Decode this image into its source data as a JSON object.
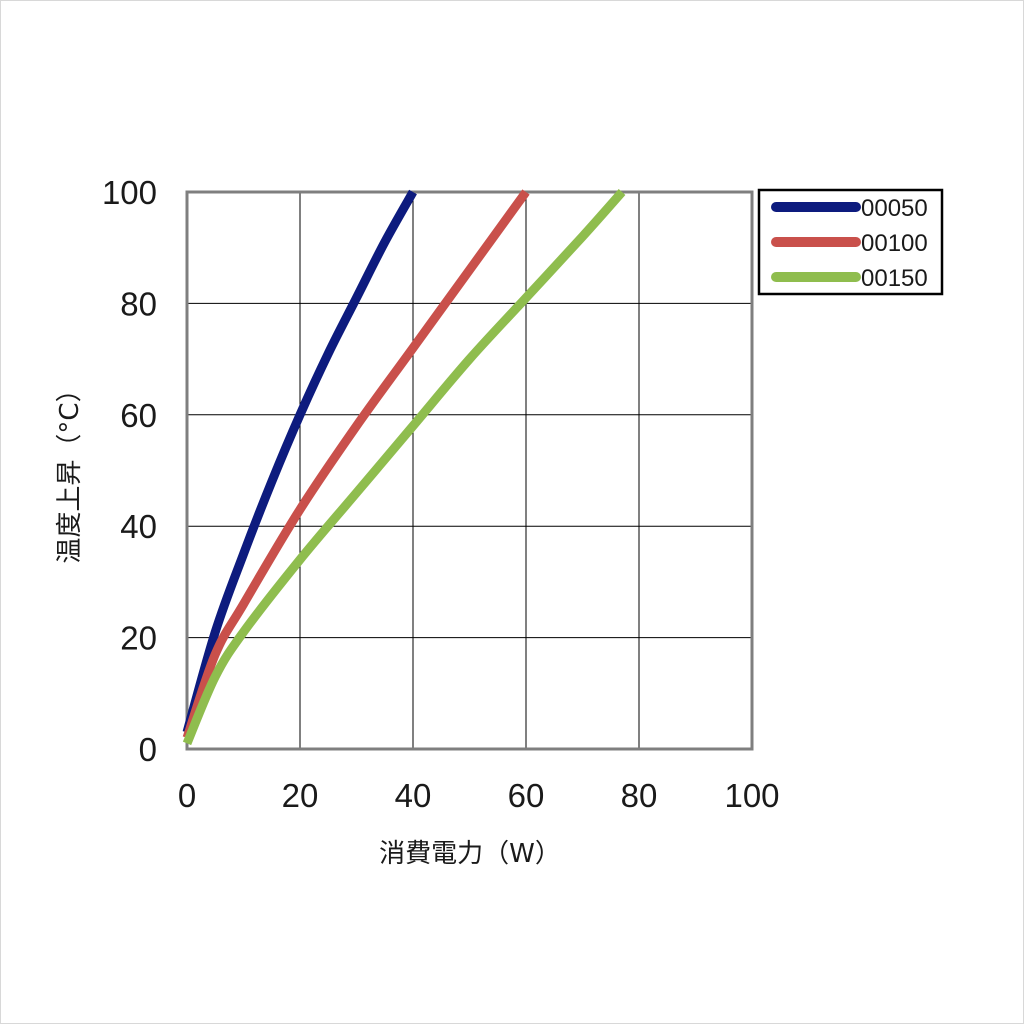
{
  "chart_data": {
    "type": "line",
    "xlabel": "消費電力（W）",
    "ylabel": "温度上昇（°C）",
    "xlim": [
      0,
      100
    ],
    "ylim": [
      0,
      100
    ],
    "xticks": [
      "0",
      "20",
      "40",
      "60",
      "80",
      "100"
    ],
    "yticks": [
      "0",
      "20",
      "40",
      "60",
      "80",
      "100"
    ],
    "grid": true,
    "legend_position": "top-right outside",
    "series": [
      {
        "name": "00050",
        "color": "#0d1b7e",
        "x": [
          0,
          5,
          10,
          15,
          20,
          25,
          30,
          35,
          40
        ],
        "y": [
          3,
          21,
          35,
          48,
          60,
          71,
          81,
          91,
          100
        ]
      },
      {
        "name": "00100",
        "color": "#c9504b",
        "x": [
          0,
          5,
          10,
          20,
          30,
          40,
          50,
          60
        ],
        "y": [
          2,
          17,
          26,
          43,
          58,
          72,
          86,
          100
        ]
      },
      {
        "name": "00150",
        "color": "#8fbd4e",
        "x": [
          0,
          5,
          10,
          20,
          30,
          40,
          50,
          60,
          70,
          77
        ],
        "y": [
          1,
          13,
          21,
          34,
          46,
          58,
          70,
          81,
          92,
          100
        ]
      }
    ]
  }
}
